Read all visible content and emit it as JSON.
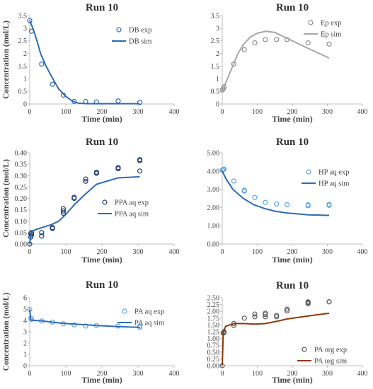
{
  "chart_data": [
    {
      "type": "scatter",
      "title": "Run 10",
      "xlabel": "Time (min)",
      "ylabel": "Concentration (mol/L)",
      "xlim": [
        0,
        400
      ],
      "ylim": [
        0,
        3.5
      ],
      "xticks": [
        "0",
        "100",
        "200",
        "300",
        "400"
      ],
      "yticks": [
        "0",
        "0.5",
        "1",
        "1.5",
        "2",
        "2.5",
        "3",
        "3.5"
      ],
      "legend_position": "top-right",
      "series": [
        {
          "name": "DB exp",
          "kind": "scatter",
          "color": "#2e6bb5",
          "x": [
            0,
            5,
            33,
            63,
            93,
            123,
            155,
            185,
            245,
            305
          ],
          "y": [
            3.3,
            2.88,
            1.58,
            0.78,
            0.35,
            0.1,
            0.1,
            0.08,
            0.12,
            0.06
          ]
        },
        {
          "name": "DB sim",
          "kind": "line",
          "color": "#2e6bb5",
          "x": [
            0,
            10,
            20,
            30,
            45,
            60,
            80,
            100,
            120,
            135,
            160,
            200,
            250,
            305
          ],
          "y": [
            3.3,
            2.95,
            2.5,
            2.0,
            1.5,
            1.1,
            0.6,
            0.3,
            0.1,
            0.03,
            0.01,
            0.01,
            0.01,
            0.01
          ]
        }
      ]
    },
    {
      "type": "scatter",
      "title": "Run 10",
      "xlabel": "Time (min)",
      "ylabel": "",
      "xlim": [
        0,
        400
      ],
      "ylim": [
        0,
        3.5
      ],
      "xticks": [
        "0",
        "100",
        "200",
        "300",
        "400"
      ],
      "yticks": [
        "0",
        "0.5",
        "1",
        "1.5",
        "2",
        "2.5",
        "3",
        "3.5"
      ],
      "legend_position": "top-right",
      "series": [
        {
          "name": "Ep exp",
          "kind": "scatter",
          "color": "#8c8c8c",
          "x": [
            0,
            3,
            5,
            33,
            63,
            93,
            123,
            155,
            185,
            245,
            305
          ],
          "y": [
            0.55,
            0.6,
            0.68,
            1.58,
            2.15,
            2.42,
            2.55,
            2.55,
            2.55,
            2.42,
            2.37
          ]
        },
        {
          "name": "Ep sim",
          "kind": "line",
          "color": "#a6a6a6",
          "x": [
            0,
            15,
            30,
            45,
            60,
            80,
            100,
            125,
            150,
            185,
            245,
            305
          ],
          "y": [
            0.5,
            1.0,
            1.5,
            2.0,
            2.35,
            2.65,
            2.8,
            2.88,
            2.83,
            2.6,
            2.2,
            1.82
          ]
        }
      ]
    },
    {
      "type": "scatter",
      "title": "Run 10",
      "xlabel": "Time (min)",
      "ylabel": "Concentration (mol/L)",
      "xlim": [
        0,
        400
      ],
      "ylim": [
        0,
        0.4
      ],
      "xticks": [
        "0",
        "100",
        "200",
        "300",
        "400"
      ],
      "yticks": [
        "0.00",
        "0.05",
        "0.10",
        "0.15",
        "0.20",
        "0.25",
        "0.30",
        "0.35",
        "0.40"
      ],
      "legend_position": "bottom-right",
      "series": [
        {
          "name": "PPA aq exp",
          "kind": "scatter",
          "color": "#1f3c6e",
          "x": [
            0,
            3,
            3,
            5,
            5,
            33,
            33,
            63,
            63,
            93,
            93,
            93,
            123,
            123,
            155,
            155,
            185,
            185,
            245,
            245,
            305,
            305,
            305
          ],
          "y": [
            0,
            0.03,
            0.045,
            0.04,
            0.05,
            0.035,
            0.05,
            0.068,
            0.072,
            0.135,
            0.145,
            0.155,
            0.2,
            0.205,
            0.275,
            0.285,
            0.31,
            0.315,
            0.33,
            0.335,
            0.32,
            0.365,
            0.37
          ]
        },
        {
          "name": "PPA aq sim",
          "kind": "line",
          "color": "#2e6bb5",
          "x": [
            0,
            5,
            20,
            40,
            60,
            80,
            100,
            125,
            155,
            185,
            245,
            305
          ],
          "y": [
            0.0,
            0.055,
            0.065,
            0.075,
            0.085,
            0.1,
            0.13,
            0.175,
            0.22,
            0.262,
            0.29,
            0.295
          ]
        }
      ]
    },
    {
      "type": "scatter",
      "title": "Run 10",
      "xlabel": "Time (min)",
      "ylabel": "",
      "xlim": [
        0,
        400
      ],
      "ylim": [
        0,
        5
      ],
      "xticks": [
        "0",
        "100",
        "200",
        "300",
        "400"
      ],
      "yticks": [
        "0.00",
        "1.00",
        "2.00",
        "3.00",
        "4.00",
        "5.00"
      ],
      "legend_position": "top-right",
      "series": [
        {
          "name": "HP aq exp",
          "kind": "scatter",
          "color": "#5ba3e0",
          "x": [
            0,
            3,
            5,
            33,
            63,
            63,
            93,
            123,
            155,
            185,
            245,
            245,
            305,
            305
          ],
          "y": [
            4.05,
            4.08,
            4.1,
            3.45,
            2.95,
            2.9,
            2.55,
            2.28,
            2.2,
            2.15,
            2.1,
            2.15,
            2.12,
            2.18
          ]
        },
        {
          "name": "HP aq sim",
          "kind": "line",
          "color": "#2e6bb5",
          "x": [
            0,
            10,
            30,
            60,
            90,
            120,
            150,
            185,
            245,
            305
          ],
          "y": [
            4.0,
            3.6,
            3.0,
            2.5,
            2.15,
            1.95,
            1.8,
            1.7,
            1.6,
            1.57
          ]
        }
      ]
    },
    {
      "type": "scatter",
      "title": "Run 10",
      "xlabel": "Time (min)",
      "ylabel": "Concentration (mol/L)",
      "xlim": [
        0,
        400
      ],
      "ylim": [
        0,
        6
      ],
      "xticks": [
        "0",
        "100",
        "200",
        "300",
        "400"
      ],
      "yticks": [
        "0",
        "1",
        "2",
        "3",
        "4",
        "5",
        "6"
      ],
      "legend_position": "top-right",
      "series": [
        {
          "name": "PA aq exp",
          "kind": "scatter",
          "color": "#5ba3e0",
          "x": [
            0,
            3,
            5,
            33,
            63,
            93,
            123,
            155,
            185,
            245,
            305,
            305
          ],
          "y": [
            4.97,
            4.2,
            4.1,
            3.95,
            3.85,
            3.7,
            3.6,
            3.5,
            3.55,
            3.5,
            3.5,
            3.4
          ]
        },
        {
          "name": "PA aq sim",
          "kind": "line",
          "color": "#2e6bb5",
          "x": [
            0,
            3,
            10,
            30,
            60,
            90,
            120,
            155,
            185,
            245,
            305
          ],
          "y": [
            4.97,
            4.05,
            4.0,
            3.97,
            3.85,
            3.75,
            3.68,
            3.62,
            3.55,
            3.45,
            3.38
          ]
        }
      ]
    },
    {
      "type": "scatter",
      "title": "Run 10",
      "xlabel": "Time (min)",
      "ylabel": "",
      "xlim": [
        0,
        400
      ],
      "ylim": [
        0,
        2.5
      ],
      "xticks": [
        "0",
        "100",
        "200",
        "300",
        "400"
      ],
      "yticks": [
        "0.00",
        "0.25",
        "0.50",
        "0.75",
        "1.00",
        "1.25",
        "1.50",
        "1.75",
        "2.00",
        "2.25",
        "2.50"
      ],
      "legend_position": "bottom-right",
      "series": [
        {
          "name": "PA org exp",
          "kind": "scatter",
          "color": "#595959",
          "x": [
            0,
            3,
            5,
            5,
            33,
            33,
            63,
            93,
            93,
            123,
            123,
            123,
            155,
            155,
            185,
            185,
            245,
            245,
            245,
            305,
            305
          ],
          "y": [
            0,
            1.2,
            1.22,
            1.25,
            1.48,
            1.55,
            1.75,
            1.8,
            1.9,
            1.8,
            1.88,
            1.93,
            1.8,
            1.85,
            2.02,
            2.08,
            2.28,
            2.32,
            2.35,
            2.35,
            2.35
          ]
        },
        {
          "name": "PA org sim",
          "kind": "line",
          "color": "#8b3a0f",
          "x": [
            0,
            3,
            10,
            33,
            63,
            93,
            123,
            155,
            185,
            245,
            305
          ],
          "y": [
            0,
            1.25,
            1.45,
            1.55,
            1.55,
            1.53,
            1.55,
            1.63,
            1.72,
            1.83,
            1.93
          ]
        }
      ]
    }
  ]
}
